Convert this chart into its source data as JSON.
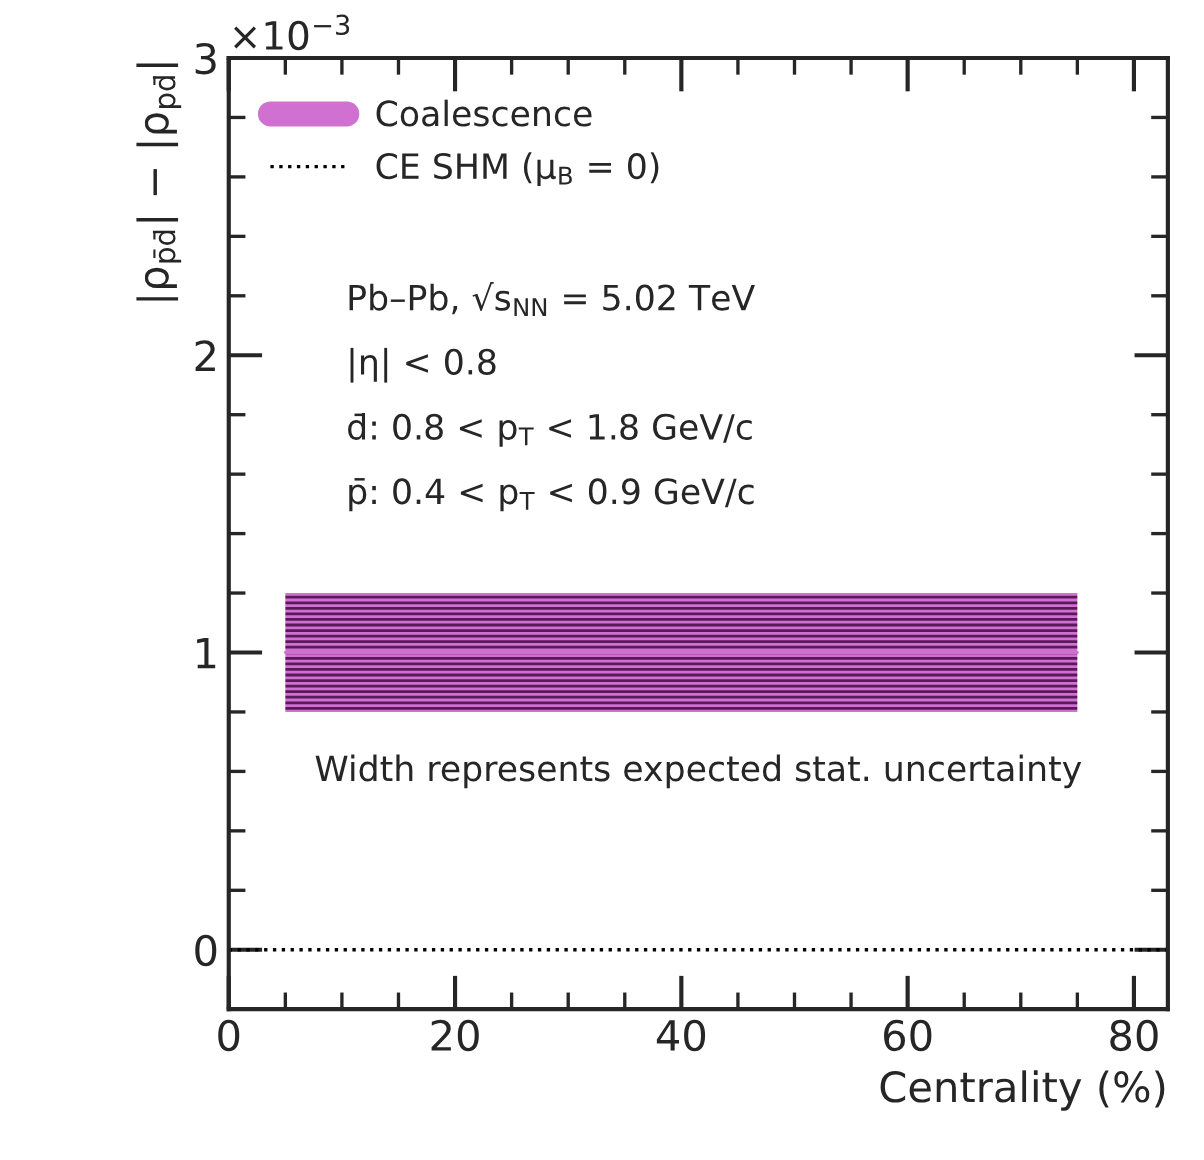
{
  "chart_data": {
    "type": "line",
    "xlabel": "Centrality (%)",
    "ylabel": "|ρ$_{p̄d̄}$| − |ρ$_{pd̄}$|",
    "series": [
      {
        "name": "Coalescence",
        "color": "#d070d0",
        "x": [
          5,
          75
        ],
        "values": [
          1.0,
          1.0
        ],
        "lower": [
          0.8,
          0.8
        ],
        "upper": [
          1.2,
          1.2
        ]
      },
      {
        "name": "CE SHM (μ$_{B}$ = 0)",
        "color": "#000000",
        "line_style": "dotted",
        "x": [
          0,
          83
        ],
        "values": [
          0,
          0
        ]
      }
    ],
    "xlim": [
      0,
      83
    ],
    "xticks": [
      0,
      {
        "value": 5,
        "label": null
      },
      {
        "value": 10,
        "label": null
      },
      {
        "value": 15,
        "label": null
      },
      20,
      {
        "value": 25,
        "label": null
      },
      {
        "value": 30,
        "label": null
      },
      {
        "value": 35,
        "label": null
      },
      40,
      {
        "value": 45,
        "label": null
      },
      {
        "value": 50,
        "label": null
      },
      {
        "value": 55,
        "label": null
      },
      60,
      {
        "value": 65,
        "label": null
      },
      {
        "value": 70,
        "label": null
      },
      {
        "value": 75,
        "label": null
      },
      80
    ],
    "ylim": [
      -0.2,
      3
    ],
    "yticks": [
      0,
      {
        "value": 0.2,
        "label": null
      },
      {
        "value": 0.4,
        "label": null
      },
      {
        "value": 0.6,
        "label": null
      },
      {
        "value": 0.8,
        "label": null
      },
      1,
      {
        "value": 1.2,
        "label": null
      },
      {
        "value": 1.4,
        "label": null
      },
      {
        "value": 1.6,
        "label": null
      },
      {
        "value": 1.8,
        "label": null
      },
      2,
      {
        "value": 2.2,
        "label": null
      },
      {
        "value": 2.4,
        "label": null
      },
      {
        "value": 2.6,
        "label": null
      },
      {
        "value": 2.8,
        "label": null
      },
      3
    ],
    "annotations": [
      "×10$^{−3}$",
      "Pb–Pb, √s$_{NN}$ = 5.02 TeV",
      "|η| < 0.8",
      "d̄: 0.8 < p$_{T}$ < 1.8 GeV/c",
      "p̄: 0.4 < p$_{T}$ < 0.9 GeV/c",
      "Width represents expected stat. uncertainty"
    ],
    "legend": "top left",
    "grid": false
  }
}
